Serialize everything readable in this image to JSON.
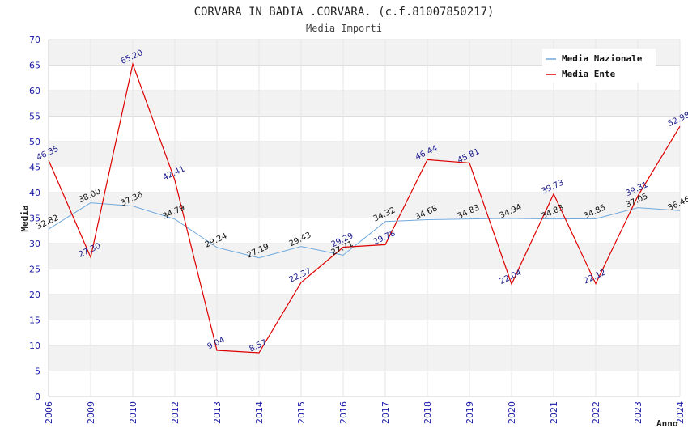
{
  "chart_data": {
    "type": "line",
    "title": "CORVARA IN BADIA .CORVARA. (c.f.81007850217)",
    "subtitle": "Media Importi",
    "xlabel": "Anno",
    "ylabel": "Media",
    "ylim": [
      0,
      70
    ],
    "ytick_step": 5,
    "grid": true,
    "legend_position": "top-right",
    "categories": [
      "2006",
      "2009",
      "2010",
      "2012",
      "2013",
      "2014",
      "2015",
      "2016",
      "2017",
      "2018",
      "2019",
      "2020",
      "2021",
      "2022",
      "2023",
      "2024"
    ],
    "series": [
      {
        "name": "Media Nazionale",
        "color": "#6fa8dc",
        "values": [
          32.82,
          38.0,
          37.36,
          34.79,
          29.24,
          27.19,
          29.43,
          27.71,
          34.32,
          34.68,
          34.83,
          34.94,
          34.83,
          34.85,
          37.05,
          36.46
        ],
        "labels": [
          "32.82",
          "38.00",
          "37.36",
          "34.79",
          "29.24",
          "27.19",
          "29.43",
          "27.71",
          "34.32",
          "34.68",
          "34.83",
          "34.94",
          "34.83",
          "34.85",
          "37.05",
          "36.46"
        ]
      },
      {
        "name": "Media Ente",
        "color": "#dd0000",
        "values": [
          46.35,
          27.3,
          65.2,
          42.41,
          9.04,
          8.57,
          22.37,
          29.29,
          29.78,
          46.44,
          45.81,
          22.04,
          39.73,
          22.12,
          39.31,
          52.98
        ],
        "labels": [
          "46.35",
          "27.30",
          "65.20",
          "42.41",
          "9.04",
          "8.57",
          "22.37",
          "29.29",
          "29.78",
          "46.44",
          "45.81",
          "22.04",
          "39.73",
          "22.12",
          "39.31",
          "52.98"
        ]
      }
    ]
  }
}
